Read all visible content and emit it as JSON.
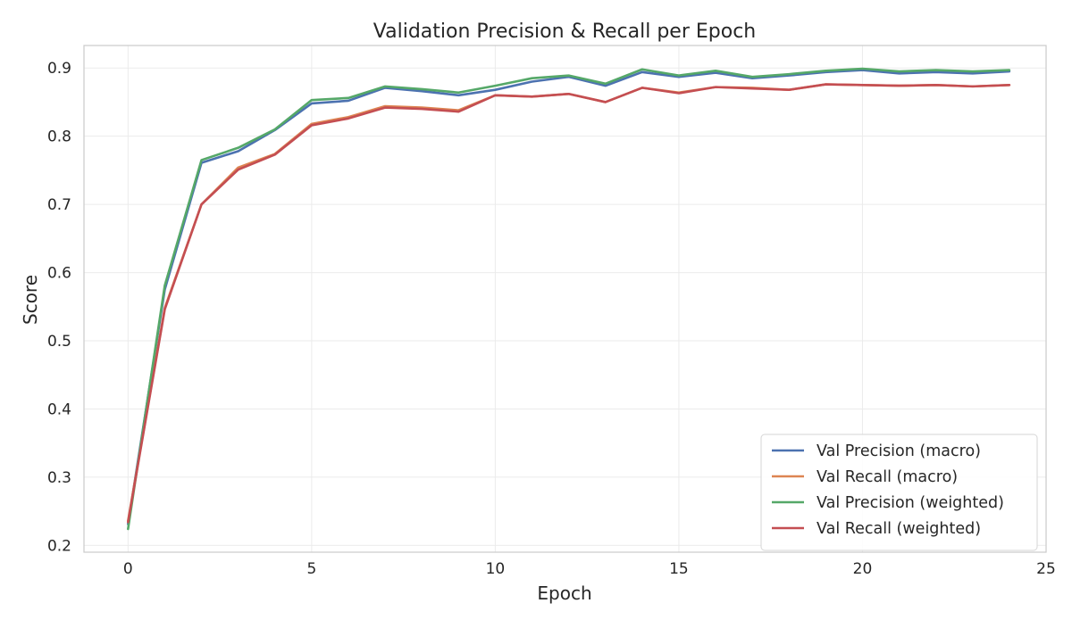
{
  "chart_data": {
    "type": "line",
    "title": "Validation Precision & Recall per Epoch",
    "xlabel": "Epoch",
    "ylabel": "Score",
    "xlim": [
      -1.2,
      25
    ],
    "ylim": [
      0.19,
      0.933
    ],
    "xticks": [
      0,
      5,
      10,
      15,
      20,
      25
    ],
    "yticks": [
      0.2,
      0.3,
      0.4,
      0.5,
      0.6,
      0.7,
      0.8,
      0.9
    ],
    "grid": true,
    "legend_position": "lower-right",
    "x": [
      0,
      1,
      2,
      3,
      4,
      5,
      6,
      7,
      8,
      9,
      10,
      11,
      12,
      13,
      14,
      15,
      16,
      17,
      18,
      19,
      20,
      21,
      22,
      23,
      24
    ],
    "series": [
      {
        "name": "Val Precision (macro)",
        "color": "#4c72b0",
        "values": [
          0.231,
          0.575,
          0.761,
          0.778,
          0.809,
          0.848,
          0.852,
          0.871,
          0.866,
          0.86,
          0.868,
          0.88,
          0.887,
          0.874,
          0.894,
          0.887,
          0.893,
          0.885,
          0.889,
          0.894,
          0.897,
          0.892,
          0.894,
          0.892,
          0.895
        ]
      },
      {
        "name": "Val Recall (macro)",
        "color": "#dd8452",
        "values": [
          0.236,
          0.548,
          0.7,
          0.754,
          0.774,
          0.818,
          0.828,
          0.844,
          0.842,
          0.838,
          0.86,
          0.858,
          0.862,
          0.85,
          0.871,
          0.864,
          0.872,
          0.871,
          0.868,
          0.876,
          0.875,
          0.874,
          0.875,
          0.873,
          0.875
        ]
      },
      {
        "name": "Val Precision (weighted)",
        "color": "#55a868",
        "values": [
          0.224,
          0.581,
          0.765,
          0.783,
          0.81,
          0.853,
          0.856,
          0.873,
          0.869,
          0.864,
          0.874,
          0.885,
          0.889,
          0.877,
          0.898,
          0.889,
          0.896,
          0.887,
          0.891,
          0.896,
          0.899,
          0.895,
          0.897,
          0.895,
          0.897
        ]
      },
      {
        "name": "Val Recall (weighted)",
        "color": "#c44e52",
        "values": [
          0.234,
          0.546,
          0.7,
          0.751,
          0.773,
          0.816,
          0.826,
          0.842,
          0.84,
          0.836,
          0.86,
          0.858,
          0.862,
          0.85,
          0.871,
          0.863,
          0.872,
          0.87,
          0.868,
          0.876,
          0.875,
          0.874,
          0.875,
          0.873,
          0.875
        ]
      }
    ]
  }
}
